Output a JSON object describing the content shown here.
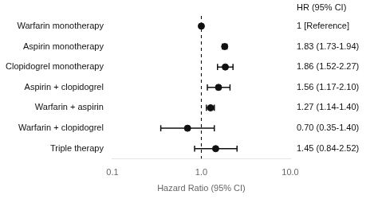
{
  "chart_data": {
    "type": "forest",
    "xlabel": "Hazard Ratio (95% CI)",
    "header": "HR (95% CI)",
    "categories": [
      "Warfarin monotherapy",
      "Aspirin monotherapy",
      "Clopidogrel monotherapy",
      "Aspirin + clopidogrel",
      "Warfarin + aspirin",
      "Warfarin + clopidogrel",
      "Triple therapy"
    ],
    "values": [
      1.0,
      1.83,
      1.86,
      1.56,
      1.27,
      0.7,
      1.45
    ],
    "ci_low": [
      null,
      1.73,
      1.52,
      1.17,
      1.14,
      0.35,
      0.84
    ],
    "ci_high": [
      null,
      1.94,
      2.27,
      2.1,
      1.4,
      1.4,
      2.52
    ],
    "value_labels": [
      "1 [Reference]",
      "1.83 (1.73-1.94)",
      "1.86 (1.52-2.27)",
      "1.56 (1.17-2.10)",
      "1.27 (1.14-1.40)",
      "0.70 (0.35-1.40)",
      "1.45 (0.84-2.52)"
    ],
    "xlim": [
      0.1,
      10.0
    ],
    "xticks": [
      0.1,
      {
        "value": 1.0,
        "label": "1.0"
      },
      {
        "value": 10.0,
        "label": "10.0"
      }
    ],
    "log": "x",
    "ref_line": 1.0,
    "color": "#111111",
    "grid": false
  }
}
